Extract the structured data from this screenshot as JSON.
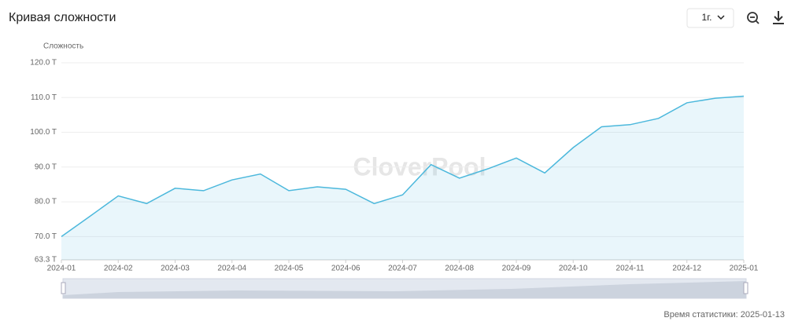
{
  "header": {
    "title": "Кривая сложности",
    "range": "1г."
  },
  "chart_data": {
    "type": "area",
    "y_axis_label": "Сложность",
    "watermark": "CloverPool",
    "categories": [
      "2024-01",
      null,
      "2024-02",
      null,
      "2024-03",
      null,
      "2024-04",
      null,
      "2024-05",
      null,
      "2024-06",
      null,
      "2024-07",
      null,
      "2024-08",
      null,
      "2024-09",
      null,
      "2024-10",
      null,
      "2024-11",
      null,
      "2024-12",
      null,
      "2025-01"
    ],
    "series": [
      {
        "name": "Сложность",
        "color": "#4cb8dc",
        "values": [
          70.0,
          75.8,
          81.7,
          79.5,
          83.9,
          83.2,
          86.3,
          88.0,
          83.2,
          84.3,
          83.6,
          79.5,
          82.0,
          90.7,
          86.8,
          89.5,
          92.6,
          88.3,
          95.6,
          101.6,
          102.2,
          104.0,
          108.5,
          109.8,
          110.4
        ]
      }
    ],
    "ylim": [
      63.3,
      120
    ],
    "yticks": [
      {
        "value": 63.3,
        "label": "63.3 T"
      },
      {
        "value": 70,
        "label": "70.0 T"
      },
      {
        "value": 80,
        "label": "80.0 T"
      },
      {
        "value": 90,
        "label": "90.0 T"
      },
      {
        "value": 100,
        "label": "100.0 T"
      },
      {
        "value": 110,
        "label": "110.0 T"
      },
      {
        "value": 120,
        "label": "120.0 T"
      }
    ],
    "grid": true
  },
  "footer": {
    "stat_time": "Время статистики: 2025-01-13"
  }
}
